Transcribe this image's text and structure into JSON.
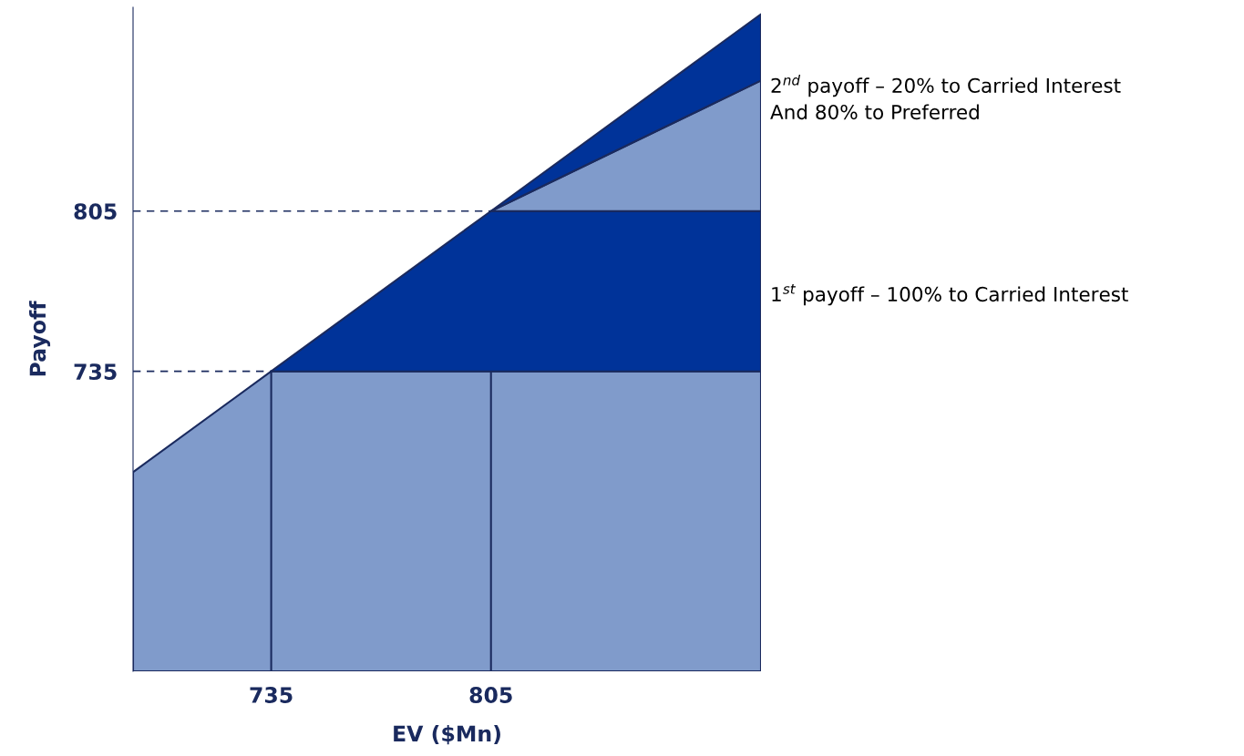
{
  "chart_data": {
    "type": "area",
    "xlabel": "EV ($Mn)",
    "ylabel": "Payoff",
    "x": [
      691,
      735,
      805,
      891
    ],
    "xlim": [
      691,
      891
    ],
    "ylim": [
      604,
      894
    ],
    "xticks": [
      735,
      805
    ],
    "yticks": [
      735,
      805
    ],
    "grid": false,
    "legend": false,
    "series": [
      {
        "color": "#809bcb",
        "values": [
          691,
          735,
          735,
          735
        ]
      },
      {
        "color": "#003399",
        "values": [
          null,
          735,
          805,
          805
        ]
      },
      {
        "color": "#809bcb",
        "values": [
          null,
          null,
          805,
          862
        ]
      },
      {
        "color": "#003399",
        "values": [
          null,
          null,
          805,
          891
        ]
      }
    ],
    "ref_lines": [
      {
        "axis": "y",
        "value": 735,
        "line_style": "dashed",
        "color": "#1a2a5e"
      },
      {
        "axis": "y",
        "value": 805,
        "line_style": "dashed",
        "color": "#1a2a5e"
      }
    ],
    "annotations": [
      "2$^{nd}$ payoff – 20% to Carried Interest\nAnd 80% to Preferred",
      "1$^{st}$ payoff – 100% to Carried Interest"
    ]
  }
}
